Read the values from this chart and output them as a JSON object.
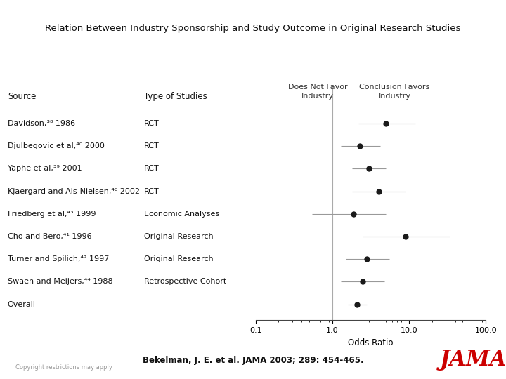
{
  "title": "Relation Between Industry Sponsorship and Study Outcome in Original Research Studies",
  "studies": [
    {
      "source": "Davidson,³⁸ 1986",
      "type": "RCT",
      "or": 5.0,
      "ci_lo": 2.2,
      "ci_hi": 12.0
    },
    {
      "source": "Djulbegovic et al,⁴⁰ 2000",
      "type": "RCT",
      "or": 2.3,
      "ci_lo": 1.3,
      "ci_hi": 4.2
    },
    {
      "source": "Yaphe et al,³⁹ 2001",
      "type": "RCT",
      "or": 3.0,
      "ci_lo": 1.8,
      "ci_hi": 5.0
    },
    {
      "source": "Kjaergard and Als-Nielsen,⁴⁸ 2002",
      "type": "RCT",
      "or": 4.0,
      "ci_lo": 1.8,
      "ci_hi": 9.0
    },
    {
      "source": "Friedberg et al,⁴³ 1999",
      "type": "Economic Analyses",
      "or": 1.9,
      "ci_lo": 0.55,
      "ci_hi": 5.0
    },
    {
      "source": "Cho and Bero,⁴¹ 1996",
      "type": "Original Research",
      "or": 9.0,
      "ci_lo": 2.5,
      "ci_hi": 34.0
    },
    {
      "source": "Turner and Spilich,⁴² 1997",
      "type": "Original Research",
      "or": 2.8,
      "ci_lo": 1.5,
      "ci_hi": 5.5
    },
    {
      "source": "Swaen and Meijers,⁴⁴ 1988",
      "type": "Retrospective Cohort",
      "or": 2.5,
      "ci_lo": 1.3,
      "ci_hi": 4.8
    },
    {
      "source": "Overall",
      "type": "",
      "or": 2.1,
      "ci_lo": 1.6,
      "ci_hi": 2.8
    }
  ],
  "xlabel": "Odds Ratio",
  "xlim_lo": 0.1,
  "xlim_hi": 100.0,
  "xticks": [
    0.1,
    1.0,
    10.0,
    100.0
  ],
  "xticklabels": [
    "0.1",
    "1.0",
    "10.0",
    "100.0"
  ],
  "vline_x": 1.0,
  "col1_label": "Source",
  "col2_label": "Type of Studies",
  "hdr_does_not_favor_1": "Does Not Favor",
  "hdr_does_not_favor_2": "Industry",
  "hdr_conclusion_favors_1": "Conclusion Favors",
  "hdr_conclusion_favors_2": "Industry",
  "dot_color": "#1a1a1a",
  "line_color": "#999999",
  "background_color": "#ffffff",
  "citation": "Bekelman, J. E. et al. JAMA 2003; 289: 454-465.",
  "copyright": "Copyright restrictions may apply",
  "jama_text": "JAMA"
}
